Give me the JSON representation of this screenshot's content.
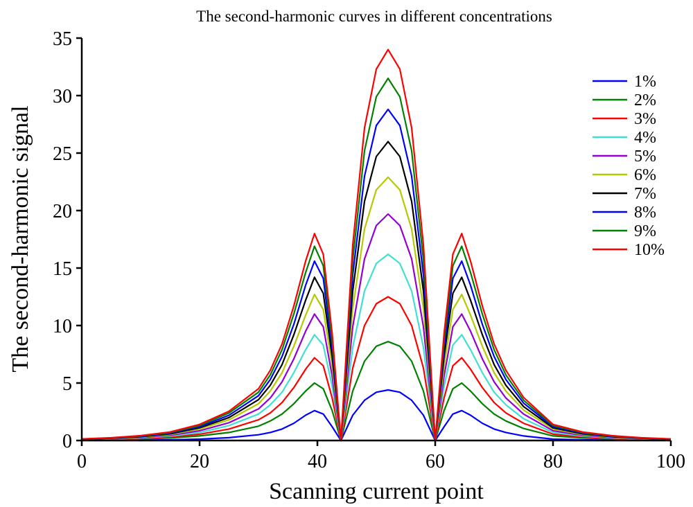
{
  "chart_data": {
    "type": "line",
    "title": "The second-harmonic curves in different concentrations",
    "xlabel": "Scanning current point",
    "ylabel": "The second-harmonic signal",
    "xlim": [
      0,
      100
    ],
    "ylim": [
      0,
      35
    ],
    "xticks": [
      "0",
      "20",
      "40",
      "60",
      "80",
      "100"
    ],
    "yticks": [
      "0",
      "5",
      "10",
      "15",
      "20",
      "25",
      "30",
      "35"
    ],
    "grid": false,
    "legend_position": "top-right",
    "x": [
      0,
      5,
      10,
      15,
      20,
      25,
      30,
      32,
      34,
      36,
      38,
      39.5,
      41,
      42.5,
      44,
      46,
      48,
      50,
      52,
      54,
      56,
      58,
      60,
      61.5,
      63,
      64.5,
      66,
      68,
      70,
      72,
      75,
      80,
      85,
      90,
      95,
      100
    ],
    "series": [
      {
        "name": "1%",
        "color": "#0000ff",
        "values": [
          0.01,
          0.02,
          0.03,
          0.06,
          0.12,
          0.25,
          0.5,
          0.7,
          1.0,
          1.5,
          2.2,
          2.6,
          2.3,
          1.2,
          0.0,
          2.2,
          3.5,
          4.2,
          4.4,
          4.2,
          3.5,
          2.2,
          0.0,
          1.2,
          2.3,
          2.6,
          2.2,
          1.5,
          1.0,
          0.7,
          0.4,
          0.12,
          0.06,
          0.03,
          0.02,
          0.01
        ]
      },
      {
        "name": "2%",
        "color": "#008000",
        "values": [
          0.05,
          0.08,
          0.13,
          0.22,
          0.4,
          0.7,
          1.25,
          1.7,
          2.3,
          3.2,
          4.3,
          5.0,
          4.5,
          2.6,
          0.0,
          4.3,
          6.9,
          8.2,
          8.6,
          8.2,
          6.9,
          4.3,
          0.0,
          2.6,
          4.5,
          5.0,
          4.3,
          3.2,
          2.3,
          1.7,
          1.05,
          0.4,
          0.22,
          0.13,
          0.08,
          0.05
        ]
      },
      {
        "name": "3%",
        "color": "#ff0000",
        "values": [
          0.06,
          0.1,
          0.17,
          0.3,
          0.55,
          1.0,
          1.8,
          2.4,
          3.3,
          4.6,
          6.2,
          7.2,
          6.5,
          3.7,
          0.0,
          6.3,
          10.0,
          11.9,
          12.5,
          11.9,
          10.0,
          6.3,
          0.0,
          3.7,
          6.5,
          7.2,
          6.2,
          4.6,
          3.3,
          2.4,
          1.5,
          0.55,
          0.3,
          0.17,
          0.1,
          0.06
        ]
      },
      {
        "name": "4%",
        "color": "#40e0d0",
        "values": [
          0.08,
          0.13,
          0.22,
          0.38,
          0.7,
          1.3,
          2.3,
          3.1,
          4.2,
          5.9,
          7.9,
          9.2,
          8.3,
          4.7,
          0.0,
          8.1,
          13.0,
          15.4,
          16.2,
          15.4,
          13.0,
          8.1,
          0.0,
          4.7,
          8.3,
          9.2,
          7.9,
          5.9,
          4.2,
          3.1,
          1.9,
          0.7,
          0.38,
          0.22,
          0.13,
          0.08
        ]
      },
      {
        "name": "5%",
        "color": "#9400d3",
        "values": [
          0.09,
          0.15,
          0.26,
          0.45,
          0.85,
          1.55,
          2.75,
          3.7,
          5.1,
          7.1,
          9.5,
          11.0,
          9.9,
          5.6,
          0.0,
          9.9,
          15.8,
          18.7,
          19.7,
          18.7,
          15.8,
          9.9,
          0.0,
          5.6,
          9.9,
          11.0,
          9.5,
          7.1,
          5.1,
          3.7,
          2.3,
          0.85,
          0.45,
          0.26,
          0.15,
          0.09
        ]
      },
      {
        "name": "6%",
        "color": "#b5c900",
        "values": [
          0.1,
          0.17,
          0.3,
          0.52,
          1.0,
          1.8,
          3.2,
          4.3,
          5.9,
          8.2,
          10.9,
          12.7,
          11.4,
          6.5,
          0.0,
          11.5,
          18.4,
          21.8,
          22.9,
          21.8,
          18.4,
          11.5,
          0.0,
          6.5,
          11.4,
          12.7,
          10.9,
          8.2,
          5.9,
          4.3,
          2.65,
          1.0,
          0.52,
          0.3,
          0.17,
          0.1
        ]
      },
      {
        "name": "7%",
        "color": "#000000",
        "values": [
          0.11,
          0.19,
          0.33,
          0.58,
          1.1,
          2.0,
          3.55,
          4.8,
          6.6,
          9.2,
          12.2,
          14.2,
          12.8,
          7.3,
          0.0,
          13.0,
          20.8,
          24.7,
          26.0,
          24.7,
          20.8,
          13.0,
          0.0,
          7.3,
          12.8,
          14.2,
          12.2,
          9.2,
          6.6,
          4.8,
          2.95,
          1.1,
          0.58,
          0.33,
          0.19,
          0.11
        ]
      },
      {
        "name": "8%",
        "color": "#0000ff",
        "values": [
          0.12,
          0.21,
          0.36,
          0.64,
          1.2,
          2.2,
          3.9,
          5.3,
          7.3,
          10.1,
          13.5,
          15.6,
          14.1,
          8.0,
          0.0,
          14.4,
          23.0,
          27.4,
          28.8,
          27.4,
          23.0,
          14.4,
          0.0,
          8.0,
          14.1,
          15.6,
          13.5,
          10.1,
          7.3,
          5.3,
          3.25,
          1.2,
          0.64,
          0.36,
          0.21,
          0.12
        ]
      },
      {
        "name": "9%",
        "color": "#008000",
        "values": [
          0.13,
          0.22,
          0.39,
          0.69,
          1.3,
          2.4,
          4.2,
          5.7,
          7.9,
          11.0,
          14.6,
          16.9,
          15.2,
          8.7,
          0.0,
          15.7,
          25.2,
          29.9,
          31.5,
          29.9,
          25.2,
          15.7,
          0.0,
          8.7,
          15.2,
          16.9,
          14.6,
          11.0,
          7.9,
          5.7,
          3.5,
          1.3,
          0.69,
          0.39,
          0.22,
          0.13
        ]
      },
      {
        "name": "10%",
        "color": "#ff0000",
        "values": [
          0.14,
          0.24,
          0.42,
          0.74,
          1.4,
          2.55,
          4.5,
          6.1,
          8.4,
          11.7,
          15.6,
          18.0,
          16.2,
          9.3,
          0.0,
          17.0,
          27.2,
          32.3,
          34.0,
          32.3,
          27.2,
          17.0,
          0.0,
          9.3,
          16.2,
          18.0,
          15.6,
          11.7,
          8.4,
          6.1,
          3.75,
          1.4,
          0.74,
          0.42,
          0.24,
          0.14
        ]
      }
    ]
  }
}
